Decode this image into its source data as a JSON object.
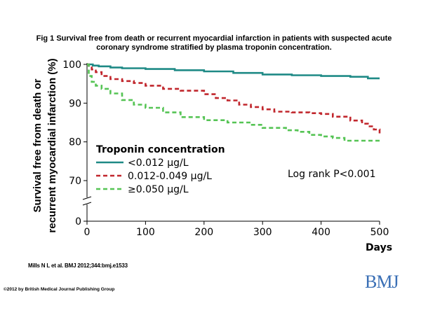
{
  "figure": {
    "title_line1": "Fig 1 Survival free from death or recurrent myocardial infarction in patients with suspected acute",
    "title_line2": "coronary syndrome stratified by plasma troponin concentration.",
    "citation": "Mills N L et al. BMJ 2012;344:bmj.e1533",
    "copyright": "©2012 by British Medical Journal Publishing Group",
    "logo_text": "BMJ"
  },
  "chart_data": {
    "type": "line",
    "title": "",
    "xlabel": "Days",
    "ylabel_line1": "Survival free from death or",
    "ylabel_line2": "recurrent myocardial infarction (%)",
    "xlim": [
      0,
      500
    ],
    "x_ticks": [
      0,
      100,
      200,
      300,
      400,
      500
    ],
    "y_ticks": [
      0,
      70,
      80,
      90,
      100
    ],
    "y_axis_break": true,
    "grid": false,
    "legend_title": "Troponin concentration",
    "legend_placement": "lower-left",
    "annotation": "Log rank P<0.001",
    "series": [
      {
        "name": "<0.012 μg/L",
        "color": "#1f8a86",
        "dash": "solid",
        "x": [
          0,
          10,
          20,
          40,
          60,
          100,
          150,
          200,
          250,
          300,
          350,
          400,
          450,
          480,
          500
        ],
        "y": [
          100,
          99.7,
          99.5,
          99.2,
          99.0,
          98.8,
          98.5,
          98.2,
          97.8,
          97.4,
          97.2,
          97.0,
          96.8,
          96.4,
          96.4
        ]
      },
      {
        "name": "0.012-0.049 μg/L",
        "color": "#c1272d",
        "dash": "dashed",
        "x": [
          0,
          3,
          8,
          15,
          25,
          40,
          60,
          80,
          100,
          130,
          160,
          200,
          220,
          240,
          260,
          280,
          300,
          320,
          350,
          380,
          400,
          420,
          450,
          470,
          480,
          490,
          500
        ],
        "y": [
          100,
          99.2,
          98.7,
          98.0,
          97.0,
          96.2,
          95.7,
          95.2,
          94.5,
          93.7,
          93.2,
          92.3,
          91.3,
          90.7,
          89.6,
          89.0,
          88.4,
          87.8,
          87.6,
          87.4,
          87.2,
          86.5,
          85.5,
          84.7,
          84.0,
          83.2,
          82.2
        ]
      },
      {
        "name": "≥0.050 μg/L",
        "color": "#56c455",
        "dash": "dashed",
        "x": [
          0,
          3,
          8,
          15,
          25,
          40,
          60,
          80,
          100,
          130,
          160,
          200,
          240,
          280,
          300,
          340,
          360,
          380,
          400,
          420,
          440,
          500
        ],
        "y": [
          100,
          97.0,
          95.5,
          94.5,
          93.7,
          92.5,
          90.8,
          89.6,
          88.8,
          87.6,
          86.4,
          85.6,
          85.0,
          84.4,
          83.6,
          83.0,
          82.6,
          81.8,
          81.4,
          81.0,
          80.3,
          80.2
        ]
      }
    ]
  }
}
